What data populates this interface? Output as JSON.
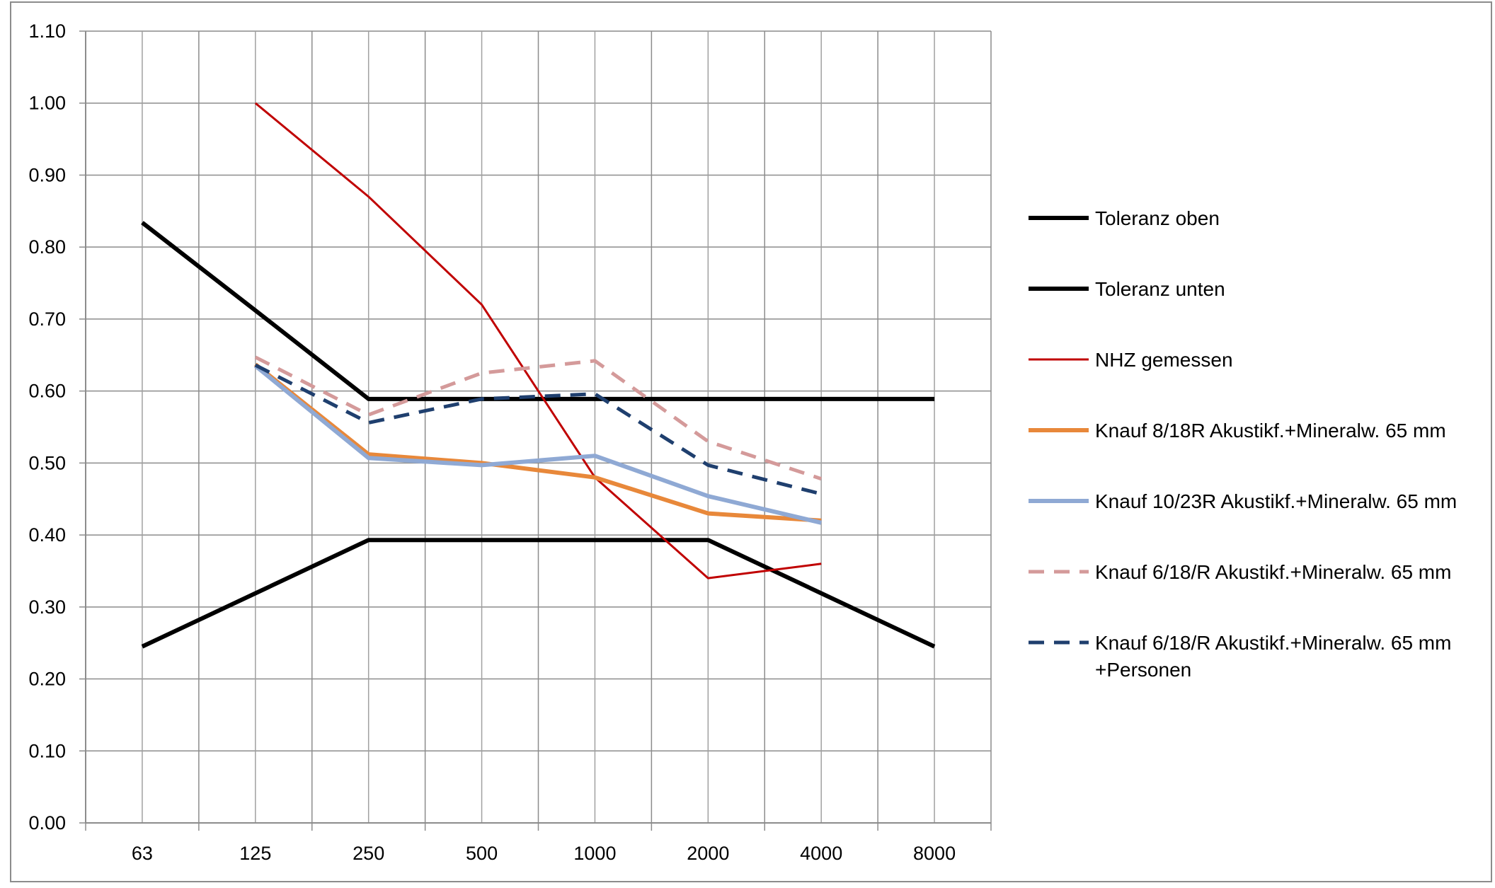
{
  "chart_data": {
    "type": "line",
    "title": "",
    "xlabel": "",
    "ylabel": "",
    "categories": [
      "63",
      "125",
      "250",
      "500",
      "1000",
      "2000",
      "4000",
      "8000"
    ],
    "ylim": [
      0,
      1.1
    ],
    "yticks": [
      "0.00",
      "0.10",
      "0.20",
      "0.30",
      "0.40",
      "0.50",
      "0.60",
      "0.70",
      "0.80",
      "0.90",
      "1.00",
      "1.10"
    ],
    "grid": true,
    "legend_position": "right",
    "series": [
      {
        "name": "Toleranz oben",
        "color": "#000000",
        "style": "solid",
        "values": [
          0.834,
          0.712,
          0.589,
          0.589,
          0.589,
          0.589,
          0.589,
          0.589
        ]
      },
      {
        "name": "Toleranz unten",
        "color": "#000000",
        "style": "solid",
        "values": [
          0.245,
          0.319,
          0.393,
          0.393,
          0.393,
          0.393,
          0.319,
          0.245
        ]
      },
      {
        "name": "NHZ gemessen",
        "color": "#c00000",
        "style": "solid",
        "values": [
          null,
          1.0,
          0.87,
          0.72,
          0.48,
          0.34,
          0.36,
          null
        ]
      },
      {
        "name": "Knauf 8/18R Akustikf.+Mineralw. 65 mm",
        "color": "#e8883a",
        "style": "solid",
        "values": [
          null,
          0.637,
          0.512,
          0.5,
          0.48,
          0.43,
          0.42,
          null
        ]
      },
      {
        "name": "Knauf 10/23R Akustikf.+Mineralw. 65 mm",
        "color": "#8fa9d4",
        "style": "solid",
        "values": [
          null,
          0.635,
          0.507,
          0.497,
          0.51,
          0.454,
          0.417,
          null
        ]
      },
      {
        "name": "Knauf 6/18/R Akustikf.+Mineralw. 65 mm",
        "color": "#d49a9a",
        "style": "dashed",
        "values": [
          null,
          0.647,
          0.567,
          0.625,
          0.642,
          0.53,
          0.478,
          null
        ]
      },
      {
        "name": "Knauf 6/18/R Akustikf.+Mineralw. 65 mm +Personen",
        "color": "#1f3f6e",
        "style": "dashed",
        "values": [
          null,
          0.636,
          0.556,
          0.589,
          0.596,
          0.497,
          0.457,
          null
        ]
      }
    ],
    "legend_labels": [
      [
        "Toleranz oben"
      ],
      [
        "Toleranz unten"
      ],
      [
        "NHZ gemessen"
      ],
      [
        "Knauf 8/18R Akustikf.+Mineralw. 65 mm"
      ],
      [
        "Knauf 10/23R Akustikf.+Mineralw. 65 mm"
      ],
      [
        "Knauf 6/18/R Akustikf.+Mineralw. 65 mm"
      ],
      [
        "Knauf 6/18/R Akustikf.+Mineralw. 65 mm",
        "+Personen"
      ]
    ]
  }
}
